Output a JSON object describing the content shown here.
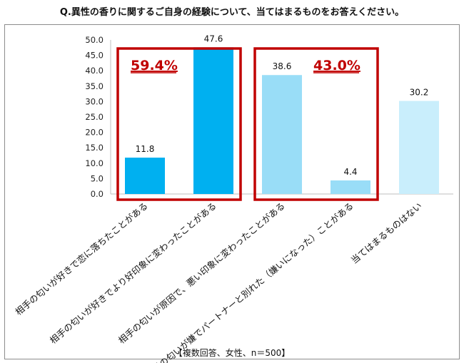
{
  "chart_data": {
    "type": "bar",
    "title": "Q.異性の香りに関するご自身の経験について、当てはまるものをお答えください。",
    "footnote": "【複数回答、女性、n＝500】",
    "categories": [
      "相手の匂いが好きで恋に落ちたことがある",
      "相手の匂いが好きでより好印象に変わったことがある",
      "相手の匂いが原因で、悪い印象に変わったことがある",
      "相手の匂いが嫌でパートナーと別れた（嫌いになった）ことがある",
      "当てはまるものはない"
    ],
    "values": [
      11.8,
      47.6,
      38.6,
      4.4,
      30.2
    ],
    "value_labels": [
      "11.8",
      "47.6",
      "38.6",
      "4.4",
      "30.2"
    ],
    "bar_colors": [
      "#00b0f0",
      "#00b0f0",
      "#99ddf7",
      "#99ddf7",
      "#c9eefc"
    ],
    "ylim": [
      0,
      50
    ],
    "yticks": [
      "0.0",
      "5.0",
      "10.0",
      "15.0",
      "20.0",
      "25.0",
      "30.0",
      "35.0",
      "40.0",
      "45.0",
      "50.0"
    ],
    "ytick_values": [
      0,
      5,
      10,
      15,
      20,
      25,
      30,
      35,
      40,
      45,
      50
    ],
    "grid": false,
    "annotations": [
      {
        "text": "59.4%",
        "color": "#c00000",
        "group": [
          0,
          1
        ]
      },
      {
        "text": "43.0%",
        "color": "#c00000",
        "group": [
          2,
          3
        ]
      }
    ]
  }
}
